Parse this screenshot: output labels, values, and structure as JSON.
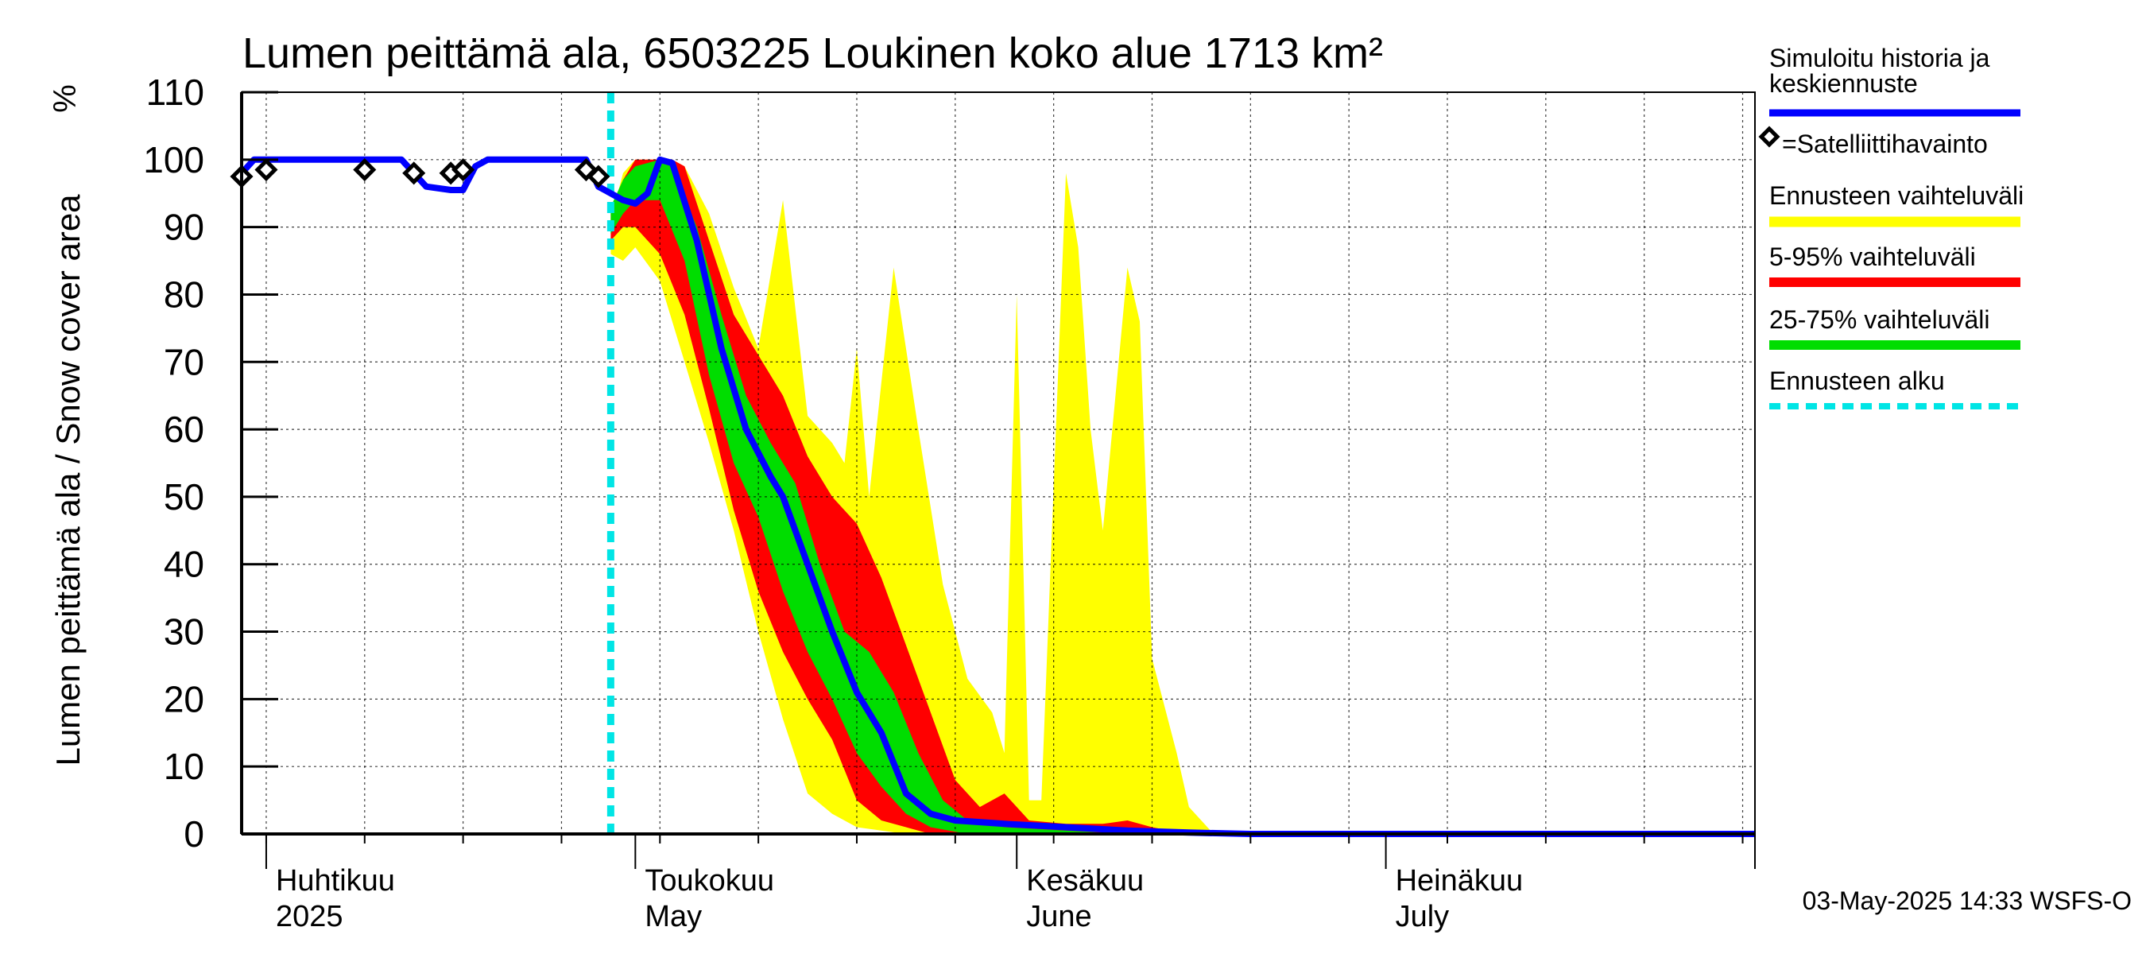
{
  "chart_data": {
    "type": "area",
    "title": "Lumen peittämä ala, 6503225 Loukinen koko alue 1713 km²",
    "ylabel": "Lumen peittämä ala / Snow cover area",
    "yunit": "%",
    "ylim": [
      0,
      110
    ],
    "yticks": [
      0,
      10,
      20,
      30,
      40,
      50,
      60,
      70,
      80,
      90,
      100,
      110
    ],
    "xlim": [
      "2025-03-30",
      "2025-07-31"
    ],
    "grid": true,
    "month_labels": [
      {
        "date": "2025-04-01",
        "fi": "Huhtikuu",
        "en": "2025"
      },
      {
        "date": "2025-05-01",
        "fi": "Toukokuu",
        "en": "May"
      },
      {
        "date": "2025-06-01",
        "fi": "Kesäkuu",
        "en": "June"
      },
      {
        "date": "2025-07-01",
        "fi": "Heinäkuu",
        "en": "July"
      }
    ],
    "forecast_start": "2025-04-29",
    "legend_position": "right",
    "legend": [
      {
        "key": "history",
        "label": "Simuloitu historia ja keskiennuste",
        "color": "#0000ff",
        "style": "line"
      },
      {
        "key": "satellite",
        "label": "=Satelliittihavainto",
        "color": "#000000",
        "style": "diamond"
      },
      {
        "key": "full_range",
        "label": "Ennusteen vaihteluväli",
        "color": "#ffff00",
        "style": "line"
      },
      {
        "key": "p5_95",
        "label": "5-95% vaihteluväli",
        "color": "#ff0000",
        "style": "line"
      },
      {
        "key": "p25_75",
        "label": "25-75% vaihteluväli",
        "color": "#00dd00",
        "style": "line"
      },
      {
        "key": "forecast_start",
        "label": "Ennusteen alku",
        "color": "#00e5e5",
        "style": "dashed"
      }
    ],
    "series": [
      {
        "name": "Simuloitu historia ja keskiennuste",
        "points": [
          [
            "2025-03-30",
            98
          ],
          [
            "2025-03-31",
            100
          ],
          [
            "2025-04-01",
            100
          ],
          [
            "2025-04-05",
            100
          ],
          [
            "2025-04-09",
            100
          ],
          [
            "2025-04-12",
            100
          ],
          [
            "2025-04-14",
            96
          ],
          [
            "2025-04-16",
            95.5
          ],
          [
            "2025-04-17",
            95.5
          ],
          [
            "2025-04-18",
            99
          ],
          [
            "2025-04-19",
            100
          ],
          [
            "2025-04-22",
            100
          ],
          [
            "2025-04-25",
            100
          ],
          [
            "2025-04-27",
            100
          ],
          [
            "2025-04-28",
            96
          ],
          [
            "2025-04-30",
            94
          ],
          [
            "2025-05-01",
            93.5
          ],
          [
            "2025-05-02",
            95
          ],
          [
            "2025-05-03",
            100
          ],
          [
            "2025-05-04",
            99.5
          ],
          [
            "2025-05-06",
            88
          ],
          [
            "2025-05-08",
            72
          ],
          [
            "2025-05-10",
            60
          ],
          [
            "2025-05-12",
            53
          ],
          [
            "2025-05-13",
            50
          ],
          [
            "2025-05-15",
            40
          ],
          [
            "2025-05-17",
            30
          ],
          [
            "2025-05-19",
            21
          ],
          [
            "2025-05-21",
            15
          ],
          [
            "2025-05-23",
            6
          ],
          [
            "2025-05-25",
            3
          ],
          [
            "2025-05-27",
            2
          ],
          [
            "2025-05-31",
            1.5
          ],
          [
            "2025-06-05",
            1
          ],
          [
            "2025-06-10",
            0.5
          ],
          [
            "2025-06-15",
            0.2
          ],
          [
            "2025-06-20",
            0
          ],
          [
            "2025-07-31",
            0
          ]
        ]
      },
      {
        "name": "Satelliittihavainto",
        "points": [
          [
            "2025-03-30",
            97.5
          ],
          [
            "2025-04-01",
            98.5
          ],
          [
            "2025-04-09",
            98.5
          ],
          [
            "2025-04-13",
            98
          ],
          [
            "2025-04-16",
            98
          ],
          [
            "2025-04-17",
            98.5
          ],
          [
            "2025-04-27",
            98.5
          ],
          [
            "2025-04-28",
            97.5
          ]
        ]
      },
      {
        "name": "Ennusteen vaihteluväli",
        "upper": [
          [
            "2025-04-29",
            91
          ],
          [
            "2025-04-30",
            98
          ],
          [
            "2025-05-01",
            100
          ],
          [
            "2025-05-04",
            100
          ],
          [
            "2025-05-05",
            99
          ],
          [
            "2025-05-07",
            92
          ],
          [
            "2025-05-09",
            81
          ],
          [
            "2025-05-11",
            72
          ],
          [
            "2025-05-13",
            94
          ],
          [
            "2025-05-15",
            62
          ],
          [
            "2025-05-17",
            58
          ],
          [
            "2025-05-18",
            55
          ],
          [
            "2025-05-19",
            72
          ],
          [
            "2025-05-20",
            50
          ],
          [
            "2025-05-22",
            84
          ],
          [
            "2025-05-24",
            60
          ],
          [
            "2025-05-26",
            37
          ],
          [
            "2025-05-28",
            23
          ],
          [
            "2025-05-30",
            18
          ],
          [
            "2025-05-31",
            12
          ],
          [
            "2025-06-01",
            80
          ],
          [
            "2025-06-02",
            5
          ],
          [
            "2025-06-03",
            5
          ],
          [
            "2025-06-05",
            98
          ],
          [
            "2025-06-06",
            87
          ],
          [
            "2025-06-07",
            60
          ],
          [
            "2025-06-08",
            45
          ],
          [
            "2025-06-10",
            84
          ],
          [
            "2025-06-11",
            76
          ],
          [
            "2025-06-12",
            26
          ],
          [
            "2025-06-14",
            12
          ],
          [
            "2025-06-15",
            4
          ],
          [
            "2025-06-17",
            0
          ]
        ],
        "lower": [
          [
            "2025-04-29",
            86
          ],
          [
            "2025-04-30",
            85
          ],
          [
            "2025-05-01",
            87
          ],
          [
            "2025-05-03",
            82
          ],
          [
            "2025-05-05",
            70
          ],
          [
            "2025-05-07",
            58
          ],
          [
            "2025-05-09",
            45
          ],
          [
            "2025-05-11",
            30
          ],
          [
            "2025-05-13",
            17
          ],
          [
            "2025-05-15",
            6
          ],
          [
            "2025-05-17",
            3
          ],
          [
            "2025-05-19",
            1
          ],
          [
            "2025-05-21",
            0.5
          ],
          [
            "2025-05-23",
            0
          ],
          [
            "2025-06-17",
            0
          ]
        ]
      },
      {
        "name": "5-95% vaihteluväli",
        "upper": [
          [
            "2025-04-29",
            92
          ],
          [
            "2025-04-30",
            97
          ],
          [
            "2025-05-01",
            100
          ],
          [
            "2025-05-04",
            100
          ],
          [
            "2025-05-05",
            99
          ],
          [
            "2025-05-07",
            88
          ],
          [
            "2025-05-09",
            77
          ],
          [
            "2025-05-11",
            71
          ],
          [
            "2025-05-13",
            65
          ],
          [
            "2025-05-15",
            56
          ],
          [
            "2025-05-17",
            50
          ],
          [
            "2025-05-19",
            46
          ],
          [
            "2025-05-21",
            38
          ],
          [
            "2025-05-23",
            28
          ],
          [
            "2025-05-25",
            18
          ],
          [
            "2025-05-27",
            8
          ],
          [
            "2025-05-29",
            4
          ],
          [
            "2025-05-31",
            6
          ],
          [
            "2025-06-02",
            2
          ],
          [
            "2025-06-05",
            1.5
          ],
          [
            "2025-06-08",
            1.5
          ],
          [
            "2025-06-10",
            2
          ],
          [
            "2025-06-12",
            1
          ],
          [
            "2025-06-14",
            0.3
          ],
          [
            "2025-06-15",
            0
          ]
        ],
        "lower": [
          [
            "2025-04-29",
            88
          ],
          [
            "2025-04-30",
            90
          ],
          [
            "2025-05-01",
            90
          ],
          [
            "2025-05-03",
            86
          ],
          [
            "2025-05-05",
            77
          ],
          [
            "2025-05-07",
            63
          ],
          [
            "2025-05-09",
            48
          ],
          [
            "2025-05-11",
            36
          ],
          [
            "2025-05-13",
            27
          ],
          [
            "2025-05-15",
            20
          ],
          [
            "2025-05-17",
            14
          ],
          [
            "2025-05-19",
            5
          ],
          [
            "2025-05-21",
            2
          ],
          [
            "2025-05-23",
            1
          ],
          [
            "2025-05-25",
            0
          ],
          [
            "2025-06-15",
            0
          ]
        ]
      },
      {
        "name": "25-75% vaihteluväli",
        "upper": [
          [
            "2025-04-29",
            93
          ],
          [
            "2025-04-30",
            97
          ],
          [
            "2025-05-01",
            99
          ],
          [
            "2025-05-03",
            100
          ],
          [
            "2025-05-04",
            99
          ],
          [
            "2025-05-06",
            90
          ],
          [
            "2025-05-08",
            77
          ],
          [
            "2025-05-10",
            65
          ],
          [
            "2025-05-12",
            58
          ],
          [
            "2025-05-14",
            52
          ],
          [
            "2025-05-16",
            40
          ],
          [
            "2025-05-18",
            30
          ],
          [
            "2025-05-20",
            27
          ],
          [
            "2025-05-22",
            21
          ],
          [
            "2025-05-24",
            12
          ],
          [
            "2025-05-26",
            5
          ],
          [
            "2025-05-28",
            2
          ],
          [
            "2025-05-31",
            1
          ],
          [
            "2025-06-05",
            0.5
          ],
          [
            "2025-06-10",
            0
          ]
        ],
        "lower": [
          [
            "2025-04-29",
            89
          ],
          [
            "2025-04-30",
            92
          ],
          [
            "2025-05-01",
            94
          ],
          [
            "2025-05-03",
            94
          ],
          [
            "2025-05-05",
            85
          ],
          [
            "2025-05-07",
            68
          ],
          [
            "2025-05-09",
            55
          ],
          [
            "2025-05-11",
            47
          ],
          [
            "2025-05-13",
            36
          ],
          [
            "2025-05-15",
            27
          ],
          [
            "2025-05-17",
            20
          ],
          [
            "2025-05-19",
            12
          ],
          [
            "2025-05-21",
            7
          ],
          [
            "2025-05-23",
            3
          ],
          [
            "2025-05-25",
            1
          ],
          [
            "2025-05-28",
            0
          ],
          [
            "2025-06-10",
            0
          ]
        ]
      }
    ],
    "footer": "03-May-2025 14:33 WSFS-O"
  }
}
